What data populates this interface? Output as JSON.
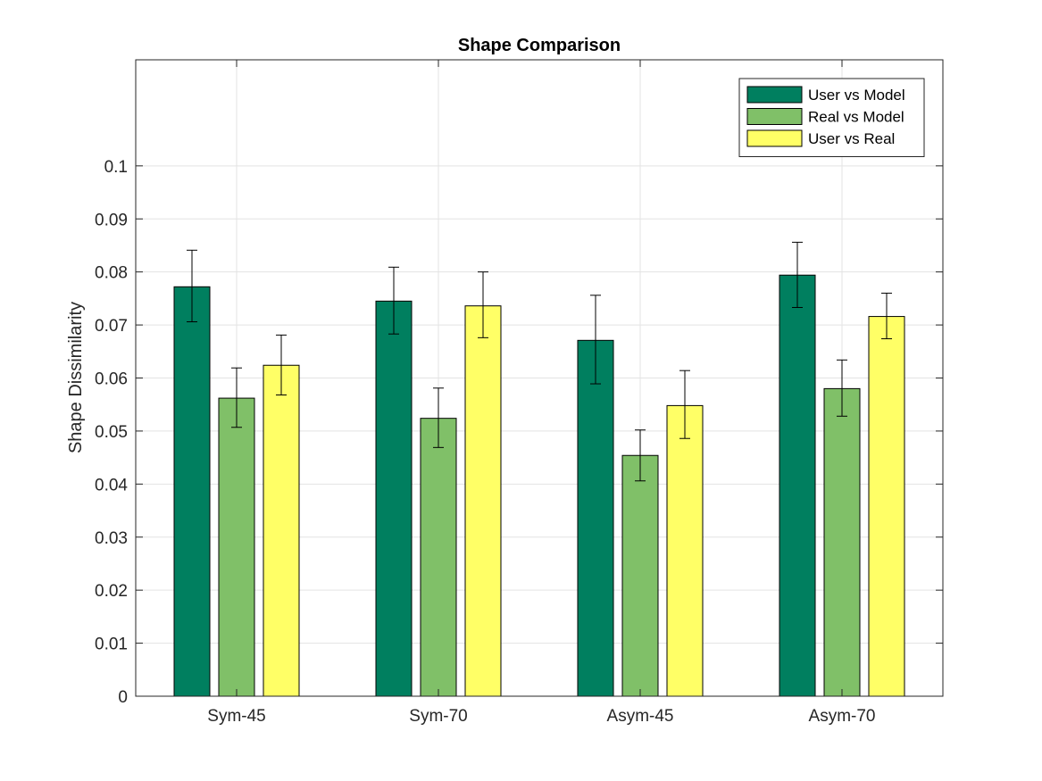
{
  "chart_data": {
    "type": "bar",
    "title": "Shape Comparison",
    "xlabel": "",
    "ylabel": "Shape Dissimilarity",
    "categories": [
      "Sym-45",
      "Sym-70",
      "Asym-45",
      "Asym-70"
    ],
    "ylim": [
      0,
      0.12
    ],
    "yticks": [
      0,
      0.01,
      0.02,
      0.03,
      0.04,
      0.05,
      0.06,
      0.07,
      0.08,
      0.09,
      0.1
    ],
    "ytick_labels": [
      "0",
      "0.01",
      "0.02",
      "0.03",
      "0.04",
      "0.05",
      "0.06",
      "0.07",
      "0.08",
      "0.09",
      "0.1"
    ],
    "grid": true,
    "legend_position": "top-right",
    "series": [
      {
        "name": "User vs Model",
        "color": "#007f5f",
        "values": [
          0.0772,
          0.0745,
          0.0671,
          0.0794
        ],
        "err_low": [
          0.0706,
          0.0683,
          0.0589,
          0.0733
        ],
        "err_high": [
          0.0841,
          0.0809,
          0.0756,
          0.0856
        ]
      },
      {
        "name": "Real vs Model",
        "color": "#80c068",
        "values": [
          0.0562,
          0.0524,
          0.0454,
          0.058
        ],
        "err_low": [
          0.0507,
          0.0469,
          0.0406,
          0.0528
        ],
        "err_high": [
          0.0619,
          0.0581,
          0.0502,
          0.0634
        ]
      },
      {
        "name": "User vs Real",
        "color": "#ffff66",
        "values": [
          0.0624,
          0.0736,
          0.0548,
          0.0716
        ],
        "err_low": [
          0.0568,
          0.0676,
          0.0486,
          0.0674
        ],
        "err_high": [
          0.0681,
          0.08,
          0.0614,
          0.076
        ]
      }
    ]
  }
}
